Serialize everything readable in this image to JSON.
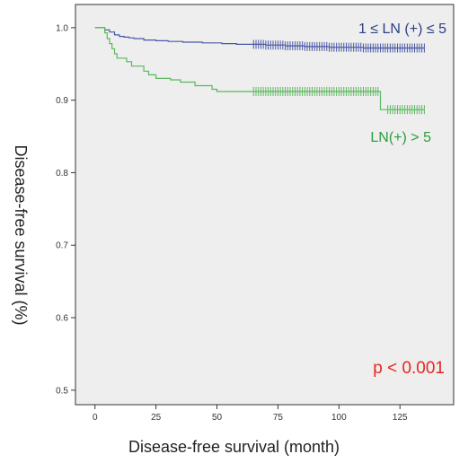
{
  "chart_data": {
    "type": "line",
    "title": "",
    "xlabel": "Disease-free survival (month)",
    "ylabel": "Disease-free survival (%)",
    "xlim": [
      -8,
      147
    ],
    "ylim": [
      0.48,
      1.032
    ],
    "x_ticks": [
      0,
      25,
      50,
      75,
      100,
      125
    ],
    "y_ticks": [
      0.5,
      0.6,
      0.7,
      0.8,
      0.9,
      1.0
    ],
    "x_tick_labels": [
      "0",
      "25",
      "50",
      "75",
      "100",
      "125"
    ],
    "y_tick_labels": [
      "0.5",
      "0.6",
      "0.7",
      "0.8",
      "0.9",
      "1.0"
    ],
    "grid": false,
    "legend": "none",
    "background": "#eeeeee",
    "series": [
      {
        "name": "1 ≤ LN (+) ≤ 5",
        "color": "#4858a6",
        "label_color": "#2b3f86",
        "steps": [
          [
            0,
            1.0
          ],
          [
            2,
            1.0
          ],
          [
            4,
            0.997
          ],
          [
            6,
            0.994
          ],
          [
            8,
            0.99
          ],
          [
            10,
            0.988
          ],
          [
            12,
            0.987
          ],
          [
            14,
            0.986
          ],
          [
            16,
            0.985
          ],
          [
            20,
            0.983
          ],
          [
            25,
            0.982
          ],
          [
            30,
            0.981
          ],
          [
            36,
            0.98
          ],
          [
            44,
            0.979
          ],
          [
            52,
            0.978
          ],
          [
            58,
            0.977
          ],
          [
            64,
            0.977
          ],
          [
            70,
            0.976
          ],
          [
            78,
            0.975
          ],
          [
            86,
            0.974
          ],
          [
            96,
            0.973
          ],
          [
            110,
            0.972
          ],
          [
            120,
            0.972
          ],
          [
            135,
            0.972
          ]
        ],
        "censor_range": [
          65,
          135
        ],
        "censor_value": 0.972
      },
      {
        "name": "LN(+) > 5",
        "color": "#5bb85d",
        "label_color": "#2a9d3c",
        "steps": [
          [
            0,
            1.0
          ],
          [
            3,
            1.0
          ],
          [
            4,
            0.993
          ],
          [
            5,
            0.985
          ],
          [
            6,
            0.978
          ],
          [
            7,
            0.971
          ],
          [
            8,
            0.964
          ],
          [
            9,
            0.958
          ],
          [
            13,
            0.953
          ],
          [
            15,
            0.947
          ],
          [
            20,
            0.94
          ],
          [
            22,
            0.935
          ],
          [
            25,
            0.93
          ],
          [
            31,
            0.928
          ],
          [
            35,
            0.925
          ],
          [
            41,
            0.92
          ],
          [
            48,
            0.915
          ],
          [
            50,
            0.912
          ],
          [
            117,
            0.912
          ],
          [
            117,
            0.887
          ],
          [
            135,
            0.887
          ]
        ],
        "censor_range": [
          65,
          135
        ],
        "censor_break": [
          116,
          120
        ]
      }
    ],
    "annotations": [
      {
        "text": "p < 0.001",
        "color": "#e8261d"
      }
    ]
  }
}
